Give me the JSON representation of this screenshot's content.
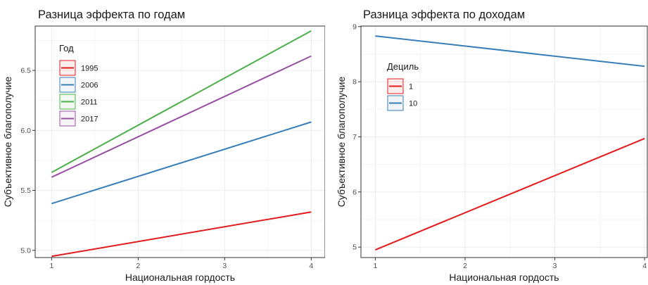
{
  "chart_data": [
    {
      "type": "line",
      "title": "Разница эффекта по годам",
      "xlabel": "Национальная гордость",
      "ylabel": "Субъективное благополучие",
      "xlim": [
        0.81,
        4.16
      ],
      "ylim": [
        4.94,
        6.87
      ],
      "xticks": [
        1,
        2,
        3,
        4
      ],
      "xtick_labels": [
        "1",
        "2",
        "3",
        "4"
      ],
      "yticks": [
        5.0,
        5.5,
        6.0,
        6.5
      ],
      "ytick_labels": [
        "5.0",
        "5.5",
        "6.0",
        "6.5"
      ],
      "grid": true,
      "legend_title": "Год",
      "legend_position": "top-left",
      "series": [
        {
          "name": "1995",
          "color": "#E41A1C",
          "x": [
            1,
            4
          ],
          "y": [
            4.95,
            5.32
          ]
        },
        {
          "name": "2006",
          "color": "#377EB8",
          "x": [
            1,
            4
          ],
          "y": [
            5.39,
            6.07
          ]
        },
        {
          "name": "2011",
          "color": "#4DAF4A",
          "x": [
            1,
            4
          ],
          "y": [
            5.65,
            6.83
          ]
        },
        {
          "name": "2017",
          "color": "#984EA3",
          "x": [
            1,
            4
          ],
          "y": [
            5.61,
            6.62
          ]
        }
      ]
    },
    {
      "type": "line",
      "title": "Разница эффекта по доходам",
      "xlabel": "Национальная гордость",
      "ylabel": "Субъективное благополучие",
      "xlim": [
        0.84,
        4.03
      ],
      "ylim": [
        4.81,
        9.01
      ],
      "xticks": [
        1,
        2,
        3,
        4
      ],
      "xtick_labels": [
        "1",
        "2",
        "3",
        "4"
      ],
      "yticks": [
        5,
        6,
        7,
        8,
        9
      ],
      "ytick_labels": [
        "5",
        "6",
        "7",
        "8",
        "9"
      ],
      "grid": true,
      "legend_title": "Дециль",
      "legend_position": "top-left",
      "series": [
        {
          "name": "1",
          "color": "#E41A1C",
          "x": [
            1,
            4
          ],
          "y": [
            4.95,
            6.97
          ]
        },
        {
          "name": "10",
          "color": "#377EB8",
          "x": [
            1,
            4
          ],
          "y": [
            8.83,
            8.28
          ]
        }
      ]
    }
  ]
}
